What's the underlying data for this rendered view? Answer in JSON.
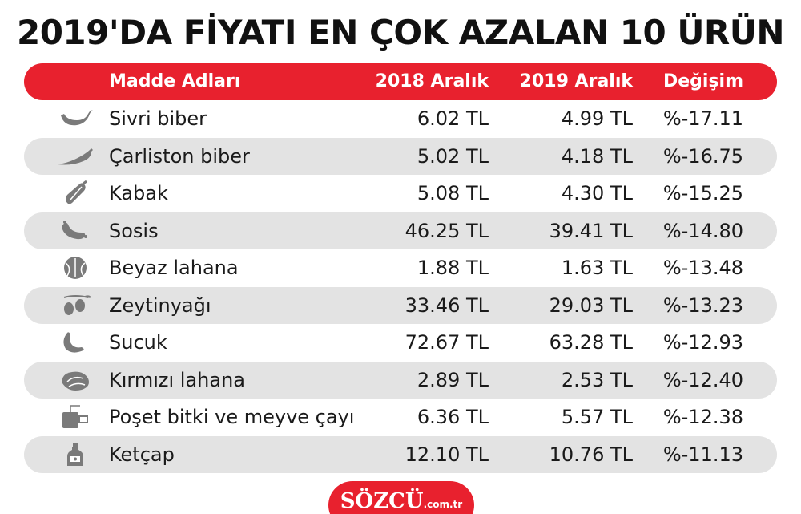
{
  "title": "2019'DA FİYATI EN ÇOK AZALAN 10 ÜRÜN",
  "colors": {
    "accent": "#e8212e",
    "row_alt": "#e3e3e3",
    "icon": "#7a7a7a"
  },
  "chart_data": {
    "type": "table",
    "columns": [
      "Madde Adları",
      "2018 Aralık",
      "2019 Aralık",
      "Değişim"
    ],
    "rows": [
      {
        "icon": "chili-pepper-icon",
        "name": "Sivri biber",
        "dec2018": "6.02 TL",
        "dec2019": "4.99 TL",
        "change": "%-17.11"
      },
      {
        "icon": "long-pepper-icon",
        "name": "Çarliston biber",
        "dec2018": "5.02 TL",
        "dec2019": "4.18 TL",
        "change": "%-16.75"
      },
      {
        "icon": "zucchini-icon",
        "name": "Kabak",
        "dec2018": "5.08 TL",
        "dec2019": "4.30 TL",
        "change": "%-15.25"
      },
      {
        "icon": "sausage-icon",
        "name": "Sosis",
        "dec2018": "46.25 TL",
        "dec2019": "39.41 TL",
        "change": "%-14.80"
      },
      {
        "icon": "cabbage-icon",
        "name": "Beyaz lahana",
        "dec2018": "1.88 TL",
        "dec2019": "1.63 TL",
        "change": "%-13.48"
      },
      {
        "icon": "olive-icon",
        "name": "Zeytinyağı",
        "dec2018": "33.46 TL",
        "dec2019": "29.03 TL",
        "change": "%-13.23"
      },
      {
        "icon": "sucuk-icon",
        "name": "Sucuk",
        "dec2018": "72.67 TL",
        "dec2019": "63.28 TL",
        "change": "%-12.93"
      },
      {
        "icon": "red-cabbage-icon",
        "name": "Kırmızı lahana",
        "dec2018": "2.89 TL",
        "dec2019": "2.53 TL",
        "change": "%-12.40"
      },
      {
        "icon": "tea-bag-icon",
        "name": "Poşet bitki ve meyve çayı",
        "dec2018": "6.36 TL",
        "dec2019": "5.57 TL",
        "change": "%-12.38"
      },
      {
        "icon": "ketchup-bottle-icon",
        "name": "Ketçap",
        "dec2018": "12.10 TL",
        "dec2019": "10.76 TL",
        "change": "%-11.13"
      }
    ]
  },
  "logo": {
    "name": "SÖZCÜ",
    "domain": ".com.tr"
  }
}
